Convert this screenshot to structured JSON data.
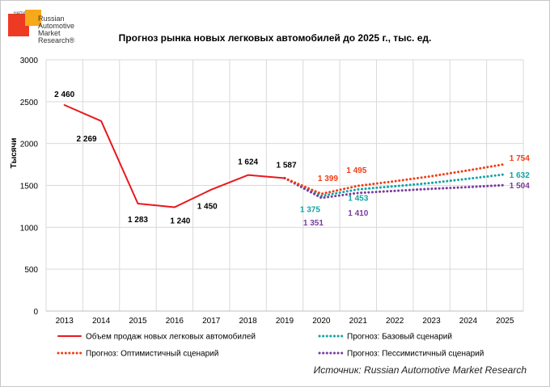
{
  "logo": {
    "small_label": "НАПИ",
    "brand_text": "Russian\nAutomotive\nMarket\nResearch®"
  },
  "source_note": "Источник: Russian Automotive Market Research",
  "colors": {
    "actual": "#e8191f",
    "optimistic": "#f03c14",
    "base": "#12a3a3",
    "pessimistic": "#7a3b9e",
    "grid": "#d9d9d9",
    "axis_text": "#000000"
  },
  "chart_data": {
    "type": "line",
    "title": "Прогноз рынка новых легковых автомобилей до 2025 г., тыс. ед.",
    "ylabel": "Тысячи",
    "xlabel": "",
    "ylim": [
      0,
      3000
    ],
    "yticks": [
      "0",
      "500",
      "1000",
      "1500",
      "2000",
      "2500",
      "3000"
    ],
    "categories": [
      "2013",
      "2014",
      "2015",
      "2016",
      "2017",
      "2018",
      "2019",
      "2020",
      "2021",
      "2022",
      "2023",
      "2024",
      "2025"
    ],
    "grid": true,
    "legend_position": "bottom",
    "series": [
      {
        "name": "Объем продаж новых легковых автомобилей",
        "style": "solid",
        "x": [
          "2013",
          "2014",
          "2015",
          "2016",
          "2017",
          "2018",
          "2019"
        ],
        "values": [
          2460,
          2269,
          1283,
          1240,
          1450,
          1624,
          1587
        ],
        "labels": [
          "2 460",
          "2 269",
          "1 283",
          "1 240",
          "1 450",
          "1 624",
          "1 587"
        ]
      },
      {
        "name": "Прогноз: Базовый сценарий",
        "style": "dotted",
        "x": [
          "2019",
          "2020",
          "2021",
          "2022",
          "2023",
          "2024",
          "2025"
        ],
        "values": [
          1587,
          1375,
          1453,
          1490,
          1530,
          1580,
          1632
        ],
        "labels": [
          "",
          "1 375",
          "1 453",
          "",
          "",
          "",
          "1 632"
        ]
      },
      {
        "name": "Прогноз: Оптимистичный сценарий",
        "style": "dotted",
        "x": [
          "2019",
          "2020",
          "2021",
          "2022",
          "2023",
          "2024",
          "2025"
        ],
        "values": [
          1587,
          1399,
          1495,
          1550,
          1610,
          1680,
          1754
        ],
        "labels": [
          "",
          "1 399",
          "1 495",
          "",
          "",
          "",
          "1 754"
        ]
      },
      {
        "name": "Прогноз: Пессимистичный сценарий",
        "style": "dotted",
        "x": [
          "2019",
          "2020",
          "2021",
          "2022",
          "2023",
          "2024",
          "2025"
        ],
        "values": [
          1587,
          1351,
          1410,
          1435,
          1460,
          1480,
          1504
        ],
        "labels": [
          "",
          "1 351",
          "1 410",
          "",
          "",
          "",
          "1 504"
        ]
      }
    ]
  }
}
